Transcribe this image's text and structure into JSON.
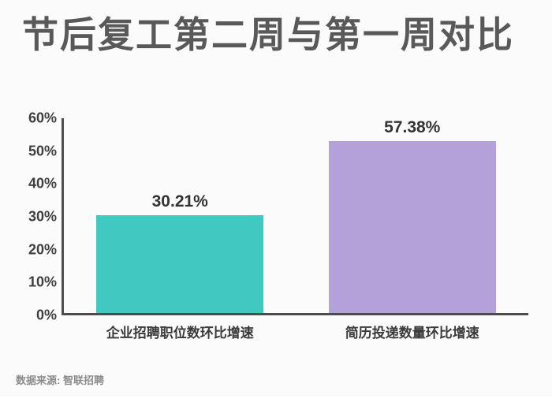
{
  "title": "节后复工第二周与第一周对比",
  "source": "数据来源: 智联招聘",
  "chart_data": {
    "type": "bar",
    "title": "节后复工第二周与第一周对比",
    "categories": [
      "企业招聘职位数环比增速",
      "简历投递数量环比增速"
    ],
    "values": [
      30.21,
      57.38
    ],
    "value_labels": [
      "30.21%",
      "57.38%"
    ],
    "xlabel": "",
    "ylabel": "",
    "ylim": [
      0,
      60
    ],
    "ytick_step": 10,
    "ytick_suffix": "%",
    "ytick_labels": [
      "0%",
      "10%",
      "20%",
      "30%",
      "40%",
      "50%",
      "60%"
    ],
    "grid": false,
    "legend": "none",
    "bar_colors": [
      "#40C8C1",
      "#B5A1DA"
    ]
  },
  "colors": {
    "title_text": "#595959",
    "axis_line": "#4d4d4d",
    "tick_label": "#3f3f3f",
    "value_label": "#333333",
    "category_label": "#3a3a3a",
    "source_text": "#8c8c8c",
    "background": "#fbfbfb"
  }
}
